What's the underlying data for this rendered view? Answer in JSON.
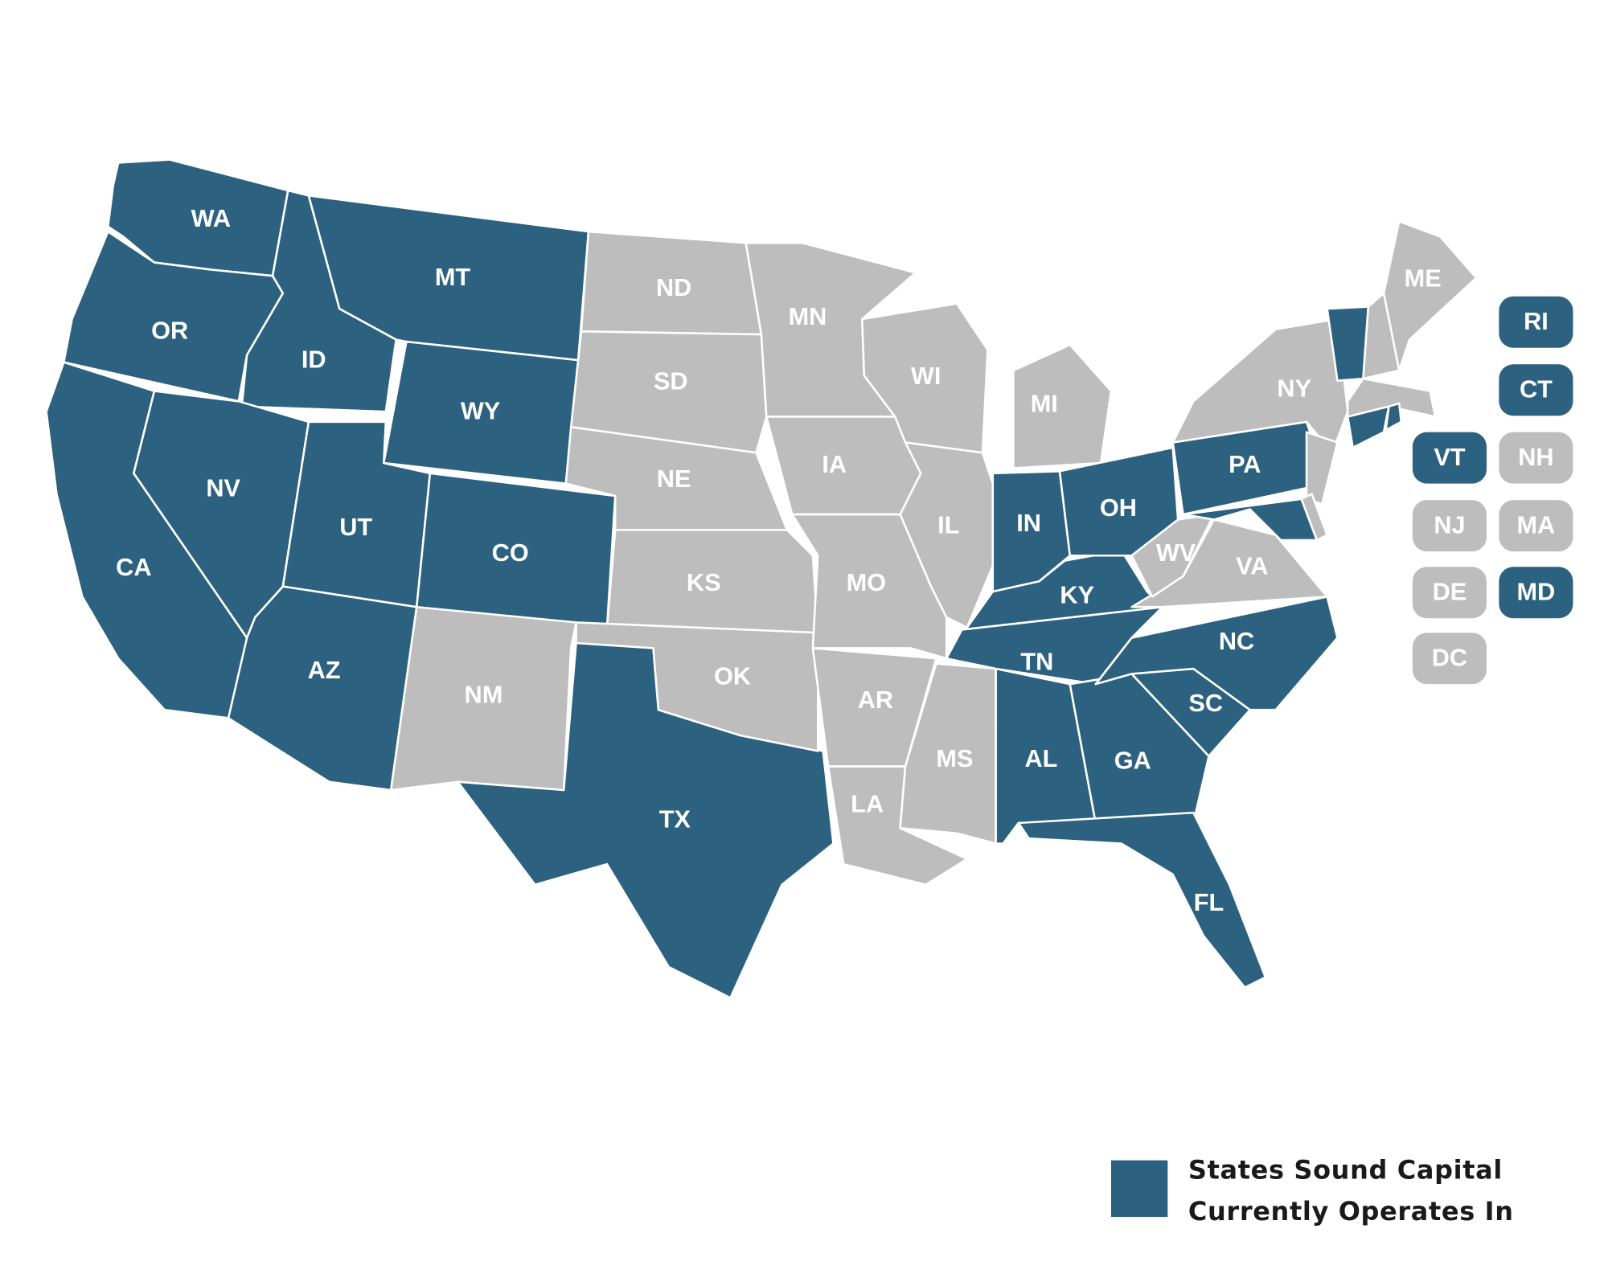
{
  "colors": {
    "active": "#2c6280",
    "inactive": "#bdbdbd"
  },
  "states": [
    {
      "code": "WA",
      "active": true
    },
    {
      "code": "OR",
      "active": true
    },
    {
      "code": "CA",
      "active": true
    },
    {
      "code": "ID",
      "active": true
    },
    {
      "code": "NV",
      "active": true
    },
    {
      "code": "MT",
      "active": true
    },
    {
      "code": "WY",
      "active": true
    },
    {
      "code": "UT",
      "active": true
    },
    {
      "code": "CO",
      "active": true
    },
    {
      "code": "AZ",
      "active": true
    },
    {
      "code": "NM",
      "active": false
    },
    {
      "code": "TX",
      "active": true
    },
    {
      "code": "ND",
      "active": false
    },
    {
      "code": "SD",
      "active": false
    },
    {
      "code": "NE",
      "active": false
    },
    {
      "code": "KS",
      "active": false
    },
    {
      "code": "OK",
      "active": false
    },
    {
      "code": "MN",
      "active": false
    },
    {
      "code": "IA",
      "active": false
    },
    {
      "code": "MO",
      "active": false
    },
    {
      "code": "AR",
      "active": false
    },
    {
      "code": "LA",
      "active": false
    },
    {
      "code": "WI",
      "active": false
    },
    {
      "code": "IL",
      "active": false
    },
    {
      "code": "MI",
      "active": false
    },
    {
      "code": "MS",
      "active": false
    },
    {
      "code": "AL",
      "active": true
    },
    {
      "code": "TN",
      "active": true
    },
    {
      "code": "KY",
      "active": true
    },
    {
      "code": "IN",
      "active": true
    },
    {
      "code": "OH",
      "active": true
    },
    {
      "code": "GA",
      "active": true
    },
    {
      "code": "FL",
      "active": true
    },
    {
      "code": "SC",
      "active": true
    },
    {
      "code": "NC",
      "active": true
    },
    {
      "code": "VA",
      "active": false
    },
    {
      "code": "WV",
      "active": false
    },
    {
      "code": "PA",
      "active": true
    },
    {
      "code": "NY",
      "active": false
    },
    {
      "code": "ME",
      "active": false
    },
    {
      "code": "VT",
      "active": true
    },
    {
      "code": "NH",
      "active": false
    },
    {
      "code": "MA",
      "active": false
    },
    {
      "code": "CT",
      "active": true
    },
    {
      "code": "RI",
      "active": true
    },
    {
      "code": "NJ",
      "active": false
    },
    {
      "code": "MD",
      "active": true
    },
    {
      "code": "DE",
      "active": false
    },
    {
      "code": "DC",
      "active": false
    }
  ],
  "legend": {
    "lines": [
      "States Sound Capital",
      "Currently Operates In"
    ]
  }
}
